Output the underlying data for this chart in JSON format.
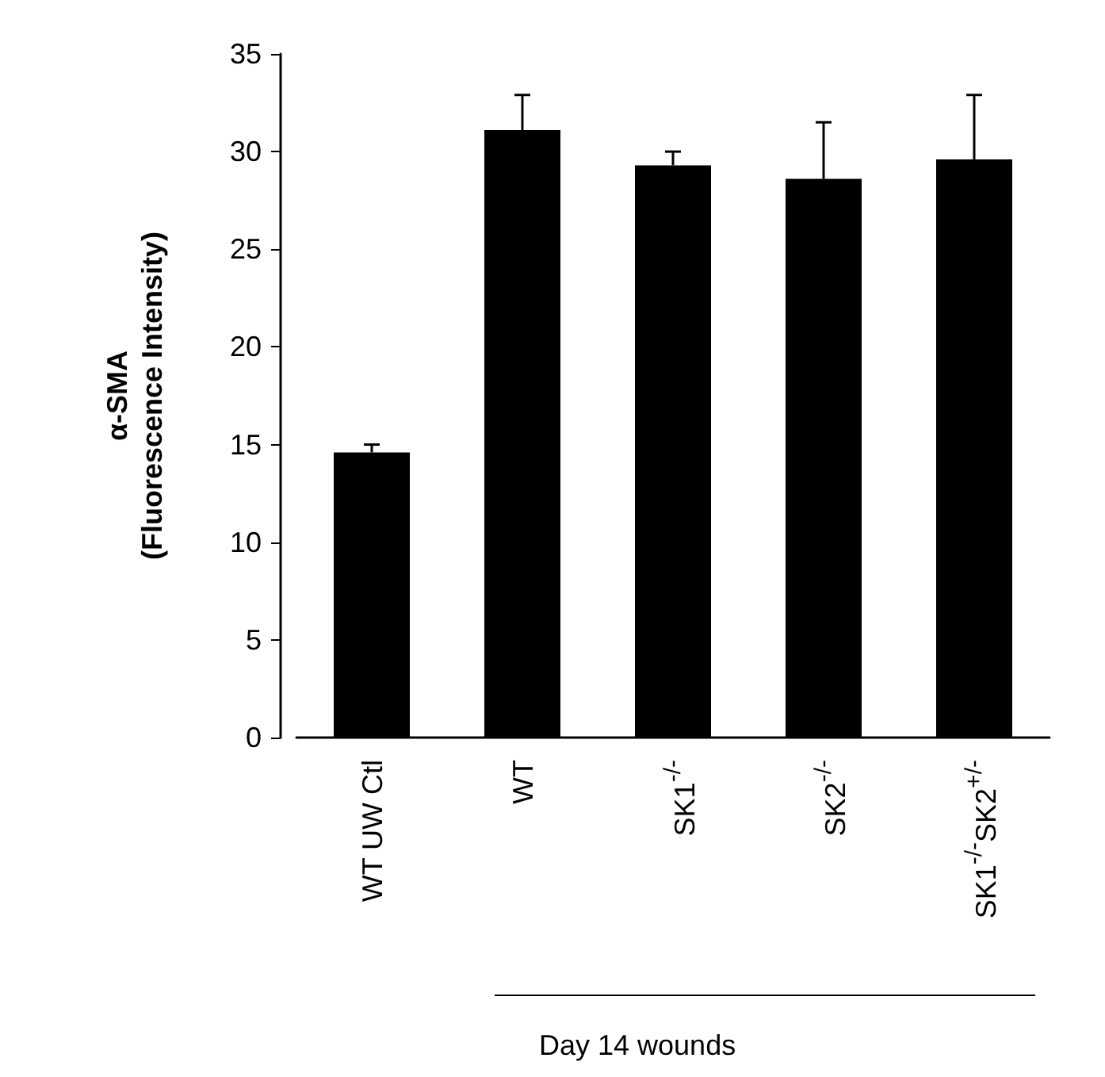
{
  "chart_data": {
    "type": "bar",
    "ylabel": "α-SMA\n(Fluorescence Intensity)",
    "categories": [
      "WT UW Ctl",
      "WT",
      "SK1$^{-/-}$",
      "SK2$^{-/-}$",
      "SK1$^{-/-}$SK2$^{+/-}$"
    ],
    "values": [
      14.6,
      31.1,
      29.3,
      28.6,
      29.6
    ],
    "errors": [
      [
        14.6,
        15.0
      ],
      [
        31.1,
        32.9
      ],
      [
        29.3,
        30.0
      ],
      [
        28.6,
        31.5
      ],
      [
        29.6,
        32.9
      ]
    ],
    "color": "#000000",
    "ylim": [
      0,
      35
    ],
    "yticks": [
      0,
      5,
      10,
      15,
      20,
      25,
      30,
      35
    ],
    "annotations": [
      "Day 14 wounds"
    ]
  }
}
